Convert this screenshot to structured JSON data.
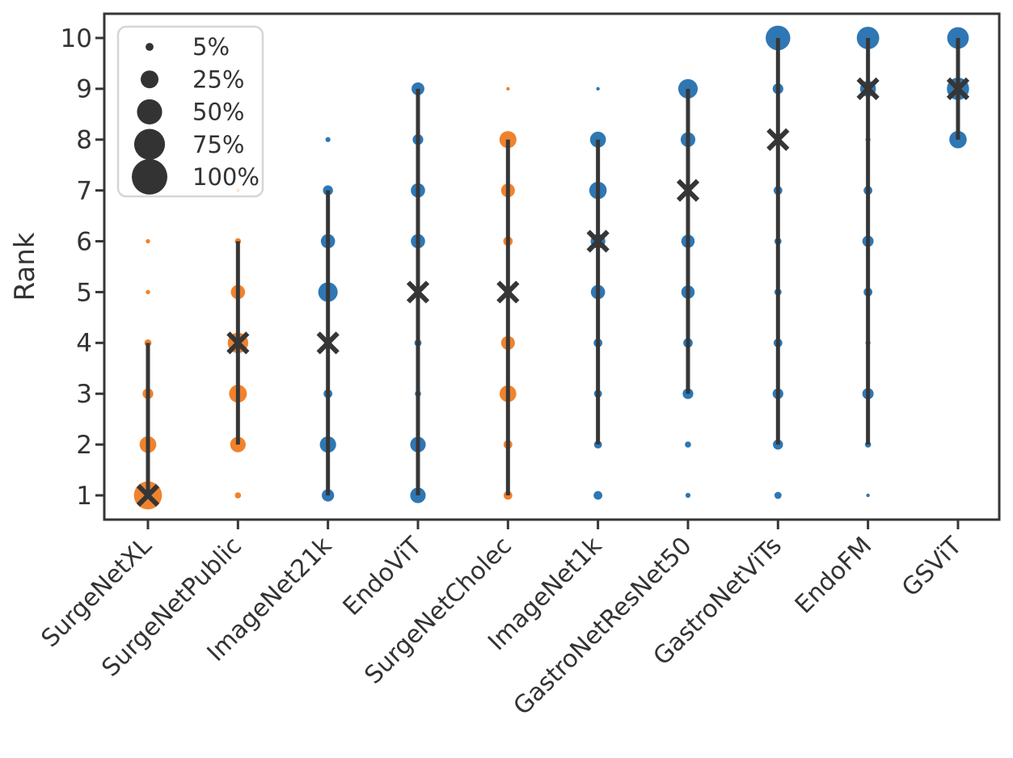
{
  "figure": {
    "background": "#ffffff",
    "text_color": "#333333",
    "spine_color": "#363636",
    "colors": {
      "orange": "#f0822d",
      "blue": "#2f77b4",
      "dark": "#363636"
    }
  },
  "legend": {
    "position": "upper-left",
    "marker_color": "#333333",
    "items": [
      {
        "label": "5%",
        "pct": 5
      },
      {
        "label": "25%",
        "pct": 25
      },
      {
        "label": "50%",
        "pct": 50
      },
      {
        "label": "75%",
        "pct": 75
      },
      {
        "label": "100%",
        "pct": 100
      }
    ]
  },
  "chart_data": {
    "type": "scatter",
    "subtype": "bubble-rank-distribution",
    "title": "",
    "xlabel": "",
    "ylabel": "Rank",
    "yticks": [
      1,
      2,
      3,
      4,
      5,
      6,
      7,
      8,
      9,
      10
    ],
    "ylim": [
      1,
      10
    ],
    "grid": false,
    "bubble_size_legend_pct": [
      5,
      25,
      50,
      75,
      100
    ],
    "categories": [
      "SurgeNetXL",
      "SurgeNetPublic",
      "ImageNet21k",
      "EndoViT",
      "SurgeNetCholec",
      "ImageNet1k",
      "GastroNetResNet50",
      "GastroNetViTs",
      "EndoFM",
      "GSViT"
    ],
    "series": [
      {
        "name": "SurgeNetXL",
        "color": "orange",
        "mean_rank": 1,
        "range_line": [
          1,
          4
        ],
        "bubbles": {
          "1": 62,
          "2": 22,
          "3": 9,
          "4": 4,
          "5": 1.5,
          "6": 1.5
        }
      },
      {
        "name": "SurgeNetPublic",
        "color": "orange",
        "mean_rank": 4,
        "range_line": [
          2,
          6
        ],
        "bubbles": {
          "1": 3,
          "2": 19,
          "3": 25,
          "4": 33,
          "5": 16,
          "6": 3,
          "7": 1
        }
      },
      {
        "name": "ImageNet21k",
        "color": "blue",
        "mean_rank": 4,
        "range_line": [
          1,
          7
        ],
        "bubbles": {
          "1": 12,
          "2": 21,
          "3": 6,
          "4": 5,
          "5": 30,
          "6": 16,
          "7": 8,
          "8": 2
        }
      },
      {
        "name": "EndoViT",
        "color": "blue",
        "mean_rank": 5,
        "range_line": [
          1,
          9
        ],
        "bubbles": {
          "1": 19,
          "2": 19,
          "3": 3,
          "4": 4,
          "5": 1,
          "6": 16,
          "7": 16,
          "8": 9,
          "9": 13
        }
      },
      {
        "name": "SurgeNetCholec",
        "color": "orange",
        "mean_rank": 5,
        "range_line": [
          1,
          8
        ],
        "bubbles": {
          "1": 6,
          "2": 6,
          "3": 22,
          "4": 15,
          "5": 5,
          "6": 7,
          "7": 15,
          "8": 23,
          "9": 1
        }
      },
      {
        "name": "ImageNet1k",
        "color": "blue",
        "mean_rank": 6,
        "range_line": [
          2,
          8
        ],
        "bubbles": {
          "1": 6,
          "2": 5,
          "3": 5,
          "4": 6,
          "5": 16,
          "6": 17,
          "7": 24,
          "8": 20,
          "9": 1
        }
      },
      {
        "name": "GastroNetResNet50",
        "color": "blue",
        "mean_rank": 7,
        "range_line": [
          3,
          9
        ],
        "bubbles": {
          "1": 2,
          "2": 3,
          "3": 9,
          "4": 7,
          "5": 14,
          "6": 14,
          "7": 4,
          "8": 17,
          "9": 30
        }
      },
      {
        "name": "GastroNetViTs",
        "color": "blue",
        "mean_rank": 8,
        "range_line": [
          2,
          10
        ],
        "bubbles": {
          "1": 4,
          "2": 8,
          "3": 9,
          "4": 6,
          "5": 4,
          "6": 4,
          "7": 6,
          "8": 2,
          "9": 9,
          "10": 48
        }
      },
      {
        "name": "EndoFM",
        "color": "blue",
        "mean_rank": 9,
        "range_line": [
          2,
          10
        ],
        "bubbles": {
          "1": 1,
          "2": 3,
          "3": 10,
          "4": 2,
          "5": 6,
          "6": 10,
          "7": 6,
          "8": 2,
          "9": 20,
          "10": 40
        }
      },
      {
        "name": "GSViT",
        "color": "blue",
        "mean_rank": 9,
        "range_line": [
          8,
          10
        ],
        "bubbles": {
          "8": 24,
          "9": 39,
          "10": 37
        }
      }
    ]
  }
}
